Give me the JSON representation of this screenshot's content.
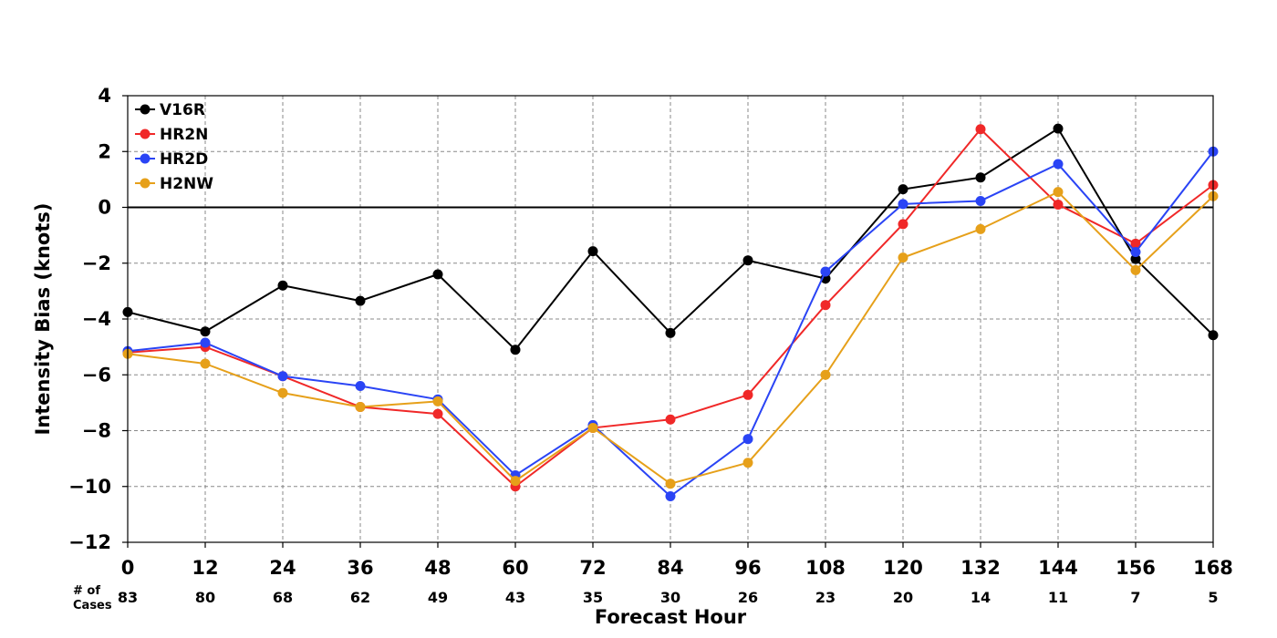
{
  "chart_data": {
    "type": "line",
    "xlabel": "Forecast Hour",
    "ylabel": "Intensity Bias (knots)",
    "x": [
      0,
      12,
      24,
      36,
      48,
      60,
      72,
      84,
      96,
      108,
      120,
      132,
      144,
      156,
      168
    ],
    "x_tick_labels": [
      "0",
      "12",
      "24",
      "36",
      "48",
      "60",
      "72",
      "84",
      "96",
      "108",
      "120",
      "132",
      "144",
      "156",
      "168"
    ],
    "ylim": [
      -12,
      4
    ],
    "y_ticks": [
      4,
      2,
      0,
      -2,
      -4,
      -6,
      -8,
      -10,
      -12
    ],
    "y_tick_labels": [
      "4",
      "2",
      "0",
      "−2",
      "−4",
      "−6",
      "−8",
      "−10",
      "−12"
    ],
    "grid": true,
    "zero_line": true,
    "legend_position": "top-left",
    "cases_label": "# of Cases",
    "cases_label_lines": [
      "# of",
      "Cases"
    ],
    "cases": [
      "83",
      "80",
      "68",
      "62",
      "49",
      "43",
      "35",
      "30",
      "26",
      "23",
      "20",
      "14",
      "11",
      "7",
      "5"
    ],
    "series": [
      {
        "name": "V16R",
        "color": "#000000",
        "values": [
          -3.75,
          -4.45,
          -2.8,
          -3.35,
          -2.4,
          -5.1,
          -1.57,
          -4.5,
          -1.9,
          -2.55,
          0.65,
          1.07,
          2.82,
          -1.85,
          -4.58
        ]
      },
      {
        "name": "HR2N",
        "color": "#f02828",
        "values": [
          -5.2,
          -5.0,
          -6.05,
          -7.15,
          -7.4,
          -10.0,
          -7.9,
          -7.6,
          -6.72,
          -3.5,
          -0.6,
          2.8,
          0.1,
          -1.3,
          0.8
        ]
      },
      {
        "name": "HR2D",
        "color": "#2a44f5",
        "values": [
          -5.15,
          -4.85,
          -6.05,
          -6.4,
          -6.88,
          -9.6,
          -7.8,
          -10.35,
          -8.3,
          -2.3,
          0.12,
          0.23,
          1.55,
          -1.6,
          2.0
        ]
      },
      {
        "name": "H2NW",
        "color": "#e6a01a",
        "values": [
          -5.25,
          -5.6,
          -6.65,
          -7.15,
          -6.95,
          -9.8,
          -7.9,
          -9.9,
          -9.15,
          -6.0,
          -1.8,
          -0.78,
          0.55,
          -2.25,
          0.4
        ]
      }
    ]
  }
}
